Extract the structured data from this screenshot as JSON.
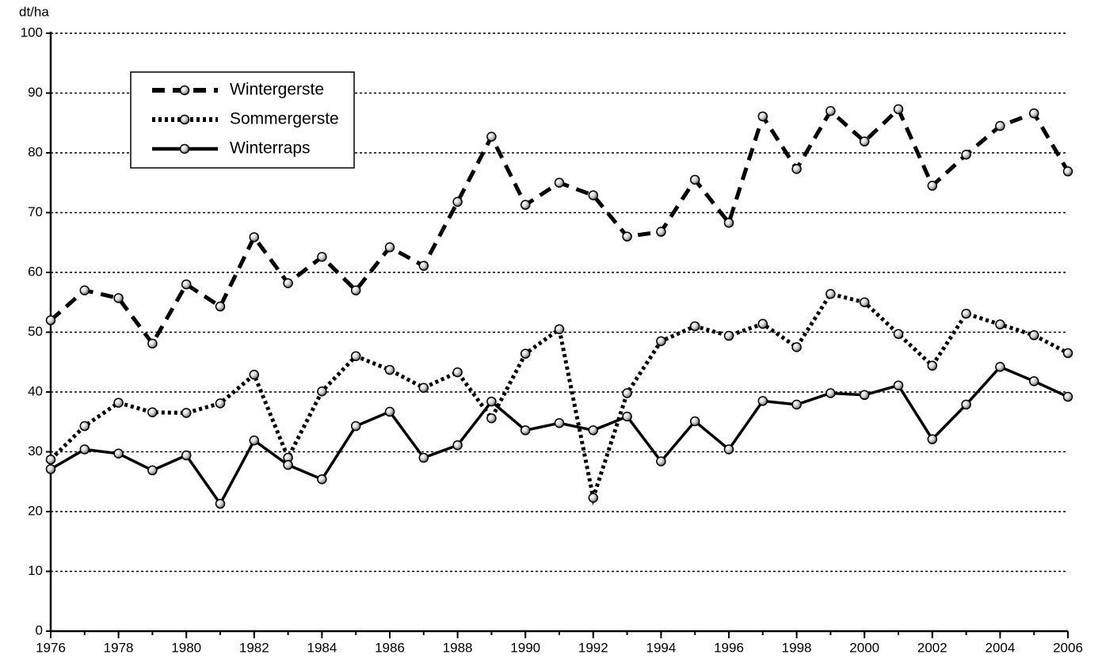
{
  "chart_data": {
    "type": "line",
    "ylabel": "dt/ha",
    "x": [
      1976,
      1977,
      1978,
      1979,
      1980,
      1981,
      1982,
      1983,
      1984,
      1985,
      1986,
      1987,
      1988,
      1989,
      1990,
      1991,
      1992,
      1993,
      1994,
      1995,
      1996,
      1997,
      1998,
      1999,
      2000,
      2001,
      2002,
      2003,
      2004,
      2005,
      2006
    ],
    "series": [
      {
        "name": "Wintergerste",
        "color": "#000000",
        "linestyle": "dashed",
        "values": [
          52,
          57,
          55.7,
          48.1,
          58,
          54.3,
          65.9,
          58.2,
          62.6,
          57,
          64.2,
          61.1,
          71.8,
          82.7,
          71.3,
          75,
          72.9,
          66,
          66.8,
          75.5,
          68.3,
          86.1,
          77.3,
          87,
          81.9,
          87.3,
          74.5,
          79.7,
          84.5,
          86.6,
          76.9
        ]
      },
      {
        "name": "Sommergerste",
        "color": "#000000",
        "linestyle": "dotted",
        "values": [
          28.7,
          34.3,
          38.2,
          36.6,
          36.5,
          38.1,
          42.9,
          29,
          40.1,
          46,
          43.7,
          40.7,
          43.3,
          35.6,
          46.4,
          50.5,
          22.3,
          39.8,
          48.5,
          51,
          49.4,
          51.4,
          47.5,
          56.4,
          55,
          49.7,
          44.4,
          53.1,
          51.3,
          49.5,
          46.5
        ]
      },
      {
        "name": "Winterraps",
        "color": "#000000",
        "linestyle": "solid",
        "values": [
          27.1,
          30.4,
          29.7,
          26.9,
          29.4,
          21.3,
          31.9,
          27.8,
          25.4,
          34.3,
          36.7,
          29,
          31.1,
          38.4,
          33.6,
          34.8,
          33.6,
          35.9,
          28.4,
          35.1,
          30.4,
          38.5,
          37.9,
          39.8,
          39.5,
          41.1,
          32.1,
          37.9,
          44.2,
          41.8,
          39.2
        ]
      }
    ],
    "xlim": [
      1976,
      2006
    ],
    "xticks": [
      1976,
      1978,
      1980,
      1982,
      1984,
      1986,
      1988,
      1990,
      1992,
      1994,
      1996,
      1998,
      2000,
      2002,
      2004,
      2006
    ],
    "ylim": [
      0,
      100
    ],
    "yticks": [
      0,
      10,
      20,
      30,
      40,
      50,
      60,
      70,
      80,
      90,
      100
    ],
    "grid": true,
    "legend": "upper left"
  }
}
